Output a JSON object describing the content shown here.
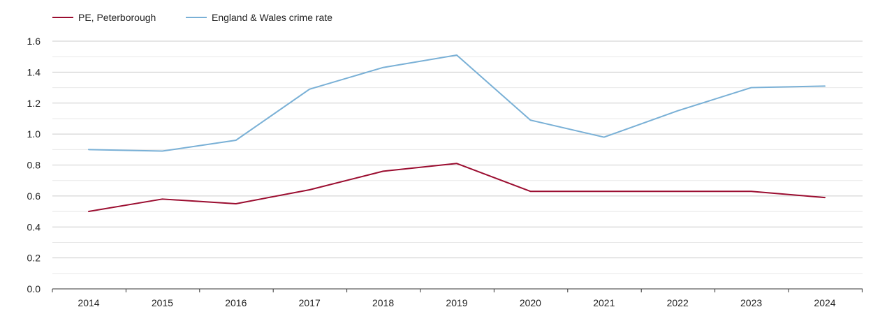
{
  "chart_data": {
    "type": "line",
    "x": [
      2014,
      2015,
      2016,
      2017,
      2018,
      2019,
      2020,
      2021,
      2022,
      2023,
      2024
    ],
    "x_tick_labels": [
      "2014",
      "2015",
      "2016",
      "2017",
      "2018",
      "2019",
      "2020",
      "2021",
      "2022",
      "2023",
      "2024"
    ],
    "y_tick_labels": [
      "0.0",
      "0.2",
      "0.4",
      "0.6",
      "0.8",
      "1.0",
      "1.2",
      "1.4",
      "1.6"
    ],
    "ylim": [
      0,
      1.6
    ],
    "grid": true,
    "legend_position": "top-left",
    "title": "",
    "xlabel": "",
    "ylabel": "",
    "series": [
      {
        "name": "PE, Peterborough",
        "color": "#9b0d30",
        "values": [
          0.5,
          0.58,
          0.55,
          0.64,
          0.76,
          0.81,
          0.63,
          0.63,
          0.63,
          0.63,
          0.59
        ]
      },
      {
        "name": "England & Wales crime rate",
        "color": "#79b0d6",
        "values": [
          0.9,
          0.89,
          0.96,
          1.29,
          1.43,
          1.51,
          1.09,
          0.98,
          1.15,
          1.3,
          1.31
        ]
      }
    ]
  }
}
